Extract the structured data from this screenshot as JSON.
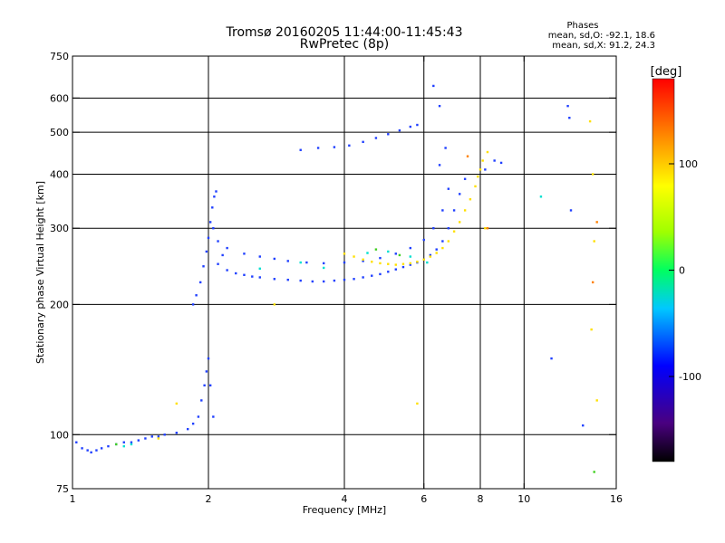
{
  "chart_data": {
    "type": "scatter",
    "title": "Tromsø 20160205 11:44:00-11:45:43",
    "subtitle": "RwPretec (8p)",
    "xlabel": "Frequency [MHz]",
    "ylabel": "Stationary phase Virtual Height [km]",
    "x_scale": "log",
    "y_scale": "log",
    "xlim": [
      1,
      16
    ],
    "ylim": [
      75,
      750
    ],
    "x_ticks": [
      1,
      2,
      4,
      6,
      8,
      10,
      16
    ],
    "x_tick_labels": [
      "1",
      "2",
      "4",
      "6",
      "8",
      "10",
      "16"
    ],
    "y_ticks": [
      75,
      100,
      200,
      300,
      400,
      500,
      600,
      750
    ],
    "y_tick_labels": [
      "75",
      "100",
      "200",
      "300",
      "400",
      "500",
      "600",
      "750"
    ],
    "x_grid": [
      2,
      4,
      6,
      8,
      10
    ],
    "y_grid": [
      100,
      200,
      300,
      400,
      500,
      600
    ],
    "grid": true,
    "phase_stats": {
      "header": "Phases",
      "line_o": "mean, sd,O: -92.1, 18.6",
      "line_x": "mean, sd,X:  91.2, 24.3"
    },
    "colorbar": {
      "label": "[deg]",
      "range": [
        -180,
        180
      ],
      "ticks": [
        100,
        0,
        -100
      ],
      "tick_labels": [
        "100",
        "0",
        "-100"
      ]
    },
    "series": [
      {
        "mode": "O",
        "color_phase_deg": -100,
        "color": "#2040ff",
        "points": [
          [
            1.02,
            96
          ],
          [
            1.05,
            93
          ],
          [
            1.08,
            92
          ],
          [
            1.1,
            91
          ],
          [
            1.13,
            92
          ],
          [
            1.16,
            93
          ],
          [
            1.2,
            94
          ],
          [
            1.25,
            95
          ],
          [
            1.3,
            96
          ],
          [
            1.35,
            96
          ],
          [
            1.4,
            97
          ],
          [
            1.45,
            98
          ],
          [
            1.5,
            99
          ],
          [
            1.55,
            99
          ],
          [
            1.6,
            100
          ],
          [
            1.7,
            101
          ],
          [
            1.8,
            103
          ],
          [
            1.85,
            106
          ],
          [
            1.9,
            110
          ],
          [
            1.93,
            120
          ],
          [
            1.96,
            130
          ],
          [
            1.98,
            140
          ],
          [
            2.0,
            150
          ],
          [
            2.02,
            130
          ],
          [
            2.05,
            110
          ],
          [
            1.85,
            200
          ],
          [
            1.88,
            210
          ],
          [
            1.92,
            225
          ],
          [
            1.95,
            245
          ],
          [
            1.98,
            265
          ],
          [
            2.0,
            285
          ],
          [
            2.02,
            310
          ],
          [
            2.04,
            335
          ],
          [
            2.06,
            355
          ],
          [
            2.08,
            365
          ],
          [
            2.05,
            300
          ],
          [
            2.1,
            280
          ],
          [
            2.15,
            260
          ],
          [
            2.1,
            248
          ],
          [
            2.2,
            240
          ],
          [
            2.3,
            236
          ],
          [
            2.4,
            234
          ],
          [
            2.5,
            232
          ],
          [
            2.6,
            231
          ],
          [
            2.8,
            229
          ],
          [
            3.0,
            228
          ],
          [
            3.2,
            227
          ],
          [
            3.4,
            226
          ],
          [
            3.6,
            226
          ],
          [
            3.8,
            227
          ],
          [
            4.0,
            228
          ],
          [
            4.2,
            229
          ],
          [
            4.4,
            231
          ],
          [
            4.6,
            233
          ],
          [
            4.8,
            235
          ],
          [
            5.0,
            238
          ],
          [
            5.2,
            241
          ],
          [
            5.4,
            244
          ],
          [
            5.6,
            247
          ],
          [
            5.8,
            250
          ],
          [
            6.0,
            254
          ],
          [
            6.2,
            260
          ],
          [
            6.4,
            268
          ],
          [
            6.6,
            280
          ],
          [
            6.8,
            300
          ],
          [
            7.0,
            330
          ],
          [
            7.2,
            360
          ],
          [
            7.4,
            390
          ],
          [
            2.2,
            270
          ],
          [
            2.4,
            262
          ],
          [
            2.6,
            258
          ],
          [
            2.8,
            255
          ],
          [
            3.0,
            252
          ],
          [
            3.3,
            250
          ],
          [
            3.6,
            249
          ],
          [
            4.0,
            250
          ],
          [
            4.4,
            252
          ],
          [
            4.8,
            256
          ],
          [
            5.2,
            262
          ],
          [
            5.6,
            270
          ],
          [
            6.0,
            282
          ],
          [
            6.3,
            300
          ],
          [
            6.6,
            330
          ],
          [
            6.8,
            370
          ],
          [
            6.5,
            420
          ],
          [
            6.7,
            460
          ],
          [
            3.2,
            455
          ],
          [
            3.5,
            460
          ],
          [
            3.8,
            462
          ],
          [
            4.1,
            466
          ],
          [
            4.4,
            475
          ],
          [
            4.7,
            485
          ],
          [
            5.0,
            495
          ],
          [
            5.3,
            505
          ],
          [
            5.6,
            515
          ],
          [
            5.8,
            520
          ],
          [
            6.3,
            640
          ],
          [
            6.5,
            575
          ],
          [
            8.2,
            410
          ],
          [
            8.6,
            430
          ],
          [
            8.9,
            425
          ],
          [
            12.5,
            575
          ],
          [
            12.6,
            540
          ],
          [
            12.7,
            330
          ],
          [
            11.5,
            150
          ],
          [
            13.5,
            105
          ]
        ]
      },
      {
        "mode": "X",
        "color_phase_deg": 100,
        "color": "#ffe000",
        "points": [
          [
            4.0,
            262
          ],
          [
            4.2,
            258
          ],
          [
            4.4,
            254
          ],
          [
            4.6,
            251
          ],
          [
            4.8,
            249
          ],
          [
            5.0,
            248
          ],
          [
            5.2,
            247
          ],
          [
            5.4,
            248
          ],
          [
            5.6,
            249
          ],
          [
            5.8,
            251
          ],
          [
            6.0,
            254
          ],
          [
            6.2,
            258
          ],
          [
            6.4,
            263
          ],
          [
            6.6,
            270
          ],
          [
            6.8,
            280
          ],
          [
            7.0,
            295
          ],
          [
            7.2,
            310
          ],
          [
            7.4,
            330
          ],
          [
            7.6,
            350
          ],
          [
            7.8,
            375
          ],
          [
            7.9,
            395
          ],
          [
            8.0,
            410
          ],
          [
            8.1,
            430
          ],
          [
            8.3,
            450
          ],
          [
            1.55,
            98
          ],
          [
            1.7,
            118
          ],
          [
            2.8,
            200
          ],
          [
            5.8,
            118
          ],
          [
            8.2,
            300
          ],
          [
            14.0,
            530
          ],
          [
            14.2,
            400
          ],
          [
            14.3,
            280
          ],
          [
            14.5,
            120
          ],
          [
            14.1,
            175
          ]
        ]
      },
      {
        "mode": "scatter",
        "color_phase_deg": 20,
        "color": "#00e0d0",
        "points": [
          [
            1.3,
            94
          ],
          [
            1.35,
            95
          ],
          [
            2.6,
            242
          ],
          [
            3.2,
            250
          ],
          [
            3.6,
            243
          ],
          [
            4.5,
            263
          ],
          [
            5.0,
            265
          ],
          [
            5.6,
            258
          ],
          [
            6.1,
            250
          ],
          [
            10.9,
            355
          ]
        ]
      },
      {
        "mode": "scatter",
        "color_phase_deg": 45,
        "color": "#40d020",
        "points": [
          [
            1.25,
            95
          ],
          [
            4.7,
            268
          ],
          [
            5.3,
            260
          ],
          [
            14.3,
            82
          ]
        ]
      },
      {
        "mode": "scatter",
        "color_phase_deg": 140,
        "color": "#ff8000",
        "points": [
          [
            7.5,
            440
          ],
          [
            8.3,
            300
          ],
          [
            14.2,
            225
          ],
          [
            14.5,
            310
          ]
        ]
      }
    ]
  }
}
